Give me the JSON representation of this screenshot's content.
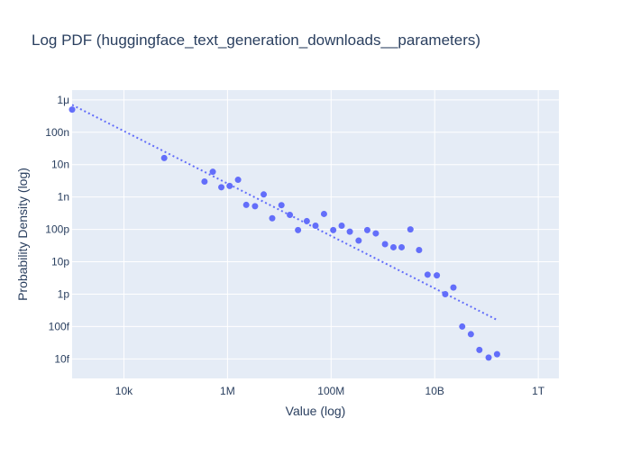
{
  "chart_data": {
    "type": "scatter",
    "title": "Log PDF (huggingface_text_generation_downloads__parameters)",
    "xlabel": "Value (log)",
    "ylabel": "Probability Density (log)",
    "x_scale": "log",
    "y_scale": "log",
    "xlim": [
      1000.0,
      2500000000000.0
    ],
    "ylim": [
      2.5e-15,
      2e-06
    ],
    "x_ticks": [
      {
        "value": 10000.0,
        "label": "10k"
      },
      {
        "value": 1000000.0,
        "label": "1M"
      },
      {
        "value": 100000000.0,
        "label": "100M"
      },
      {
        "value": 10000000000.0,
        "label": "10B"
      },
      {
        "value": 1000000000000.0,
        "label": "1T"
      }
    ],
    "y_ticks": [
      {
        "value": 1e-14,
        "label": "10f"
      },
      {
        "value": 1e-13,
        "label": "100f"
      },
      {
        "value": 1e-12,
        "label": "1p"
      },
      {
        "value": 1e-11,
        "label": "10p"
      },
      {
        "value": 1e-10,
        "label": "100p"
      },
      {
        "value": 1e-09,
        "label": "1n"
      },
      {
        "value": 1e-08,
        "label": "10n"
      },
      {
        "value": 1e-07,
        "label": "100n"
      },
      {
        "value": 1e-06,
        "label": "1μ"
      }
    ],
    "grid": true,
    "colors": {
      "points": "#636efa",
      "fit": "#636efa",
      "plot_bg": "#e5ecf6",
      "grid": "#ffffff",
      "text": "#2a3f5f"
    },
    "series": [
      {
        "type": "scatter",
        "points": [
          [
            1000.0,
            5e-07
          ],
          [
            60000.0,
            1.6e-08
          ],
          [
            360000.0,
            3e-09
          ],
          [
            520000.0,
            6e-09
          ],
          [
            760000.0,
            2e-09
          ],
          [
            1100000.0,
            2.2e-09
          ],
          [
            1600000.0,
            3.4e-09
          ],
          [
            2300000.0,
            5.7e-10
          ],
          [
            3400000.0,
            5.2e-10
          ],
          [
            5000000.0,
            1.2e-09
          ],
          [
            7300000.0,
            2.2e-10
          ],
          [
            11000000.0,
            5.6e-10
          ],
          [
            16000000.0,
            2.8e-10
          ],
          [
            23000000.0,
            9.5e-11
          ],
          [
            34000000.0,
            1.8e-10
          ],
          [
            50000000.0,
            1.3e-10
          ],
          [
            73000000.0,
            3e-10
          ],
          [
            110000000.0,
            9.5e-11
          ],
          [
            160000000.0,
            1.3e-10
          ],
          [
            230000000.0,
            8.5e-11
          ],
          [
            340000000.0,
            4.5e-11
          ],
          [
            500000000.0,
            9.5e-11
          ],
          [
            730000000.0,
            7.5e-11
          ],
          [
            1100000000.0,
            3.5e-11
          ],
          [
            1600000000.0,
            2.8e-11
          ],
          [
            2300000000.0,
            2.8e-11
          ],
          [
            3400000000.0,
            1e-10
          ],
          [
            5000000000.0,
            2.3e-11
          ],
          [
            7300000000.0,
            4e-12
          ],
          [
            11000000000.0,
            3.8e-12
          ],
          [
            16000000000.0,
            1e-12
          ],
          [
            23000000000.0,
            1.6e-12
          ],
          [
            34000000000.0,
            1e-13
          ],
          [
            50000000000.0,
            5.8e-14
          ],
          [
            73000000000.0,
            1.9e-14
          ],
          [
            110000000000.0,
            1.1e-14
          ],
          [
            160000000000.0,
            1.4e-14
          ]
        ]
      },
      {
        "type": "line",
        "style": "dotted",
        "points": [
          [
            1000.0,
            7e-07
          ],
          [
            160000000000.0,
            1.6e-13
          ]
        ]
      }
    ]
  }
}
